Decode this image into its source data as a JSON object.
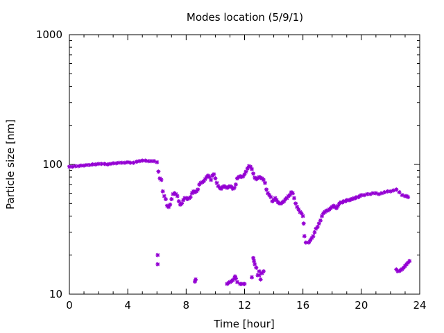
{
  "chart_data": {
    "type": "scatter",
    "title": "Modes location (5/9/1)",
    "xlabel": "Time [hour]",
    "ylabel": "Particle size [nm]",
    "xlim": [
      0,
      24
    ],
    "ylim": [
      10,
      1000
    ],
    "yscale": "log",
    "xticks": [
      0,
      4,
      8,
      12,
      16,
      20,
      24
    ],
    "xtick_labels": [
      "0",
      "4",
      "8",
      "12",
      "16",
      "20",
      "24"
    ],
    "yticks": [
      10,
      100,
      1000
    ],
    "ytick_labels": [
      "10",
      "100",
      "1000"
    ],
    "grid": false,
    "legend": "none",
    "marker_color": "#9400D3",
    "series": [
      {
        "points": [
          [
            0.0,
            96
          ],
          [
            0.2,
            96
          ],
          [
            0.4,
            97
          ],
          [
            0.6,
            97
          ],
          [
            0.8,
            98
          ],
          [
            1.0,
            98
          ],
          [
            1.2,
            99
          ],
          [
            1.4,
            99
          ],
          [
            1.6,
            100
          ],
          [
            1.8,
            100
          ],
          [
            2.0,
            101
          ],
          [
            2.2,
            101
          ],
          [
            2.4,
            101
          ],
          [
            2.6,
            100
          ],
          [
            2.8,
            101
          ],
          [
            3.0,
            102
          ],
          [
            3.2,
            102
          ],
          [
            3.4,
            103
          ],
          [
            3.6,
            103
          ],
          [
            3.8,
            103
          ],
          [
            4.0,
            104
          ],
          [
            4.2,
            103
          ],
          [
            4.4,
            103
          ],
          [
            4.6,
            105
          ],
          [
            4.8,
            106
          ],
          [
            5.0,
            107
          ],
          [
            5.2,
            107
          ],
          [
            5.4,
            106
          ],
          [
            5.6,
            106
          ],
          [
            5.8,
            106
          ],
          [
            6.0,
            104
          ],
          [
            6.1,
            88
          ],
          [
            6.2,
            78
          ],
          [
            6.3,
            76
          ],
          [
            6.4,
            62
          ],
          [
            6.5,
            57
          ],
          [
            6.6,
            54
          ],
          [
            6.7,
            48
          ],
          [
            6.8,
            47
          ],
          [
            6.9,
            49
          ],
          [
            7.0,
            54
          ],
          [
            7.1,
            59
          ],
          [
            7.2,
            60
          ],
          [
            7.3,
            59
          ],
          [
            7.4,
            57
          ],
          [
            7.5,
            52
          ],
          [
            7.6,
            49
          ],
          [
            7.7,
            50
          ],
          [
            7.8,
            53
          ],
          [
            7.9,
            55
          ],
          [
            8.0,
            55
          ],
          [
            8.1,
            54
          ],
          [
            8.2,
            55
          ],
          [
            8.3,
            56
          ],
          [
            8.4,
            60
          ],
          [
            8.5,
            62
          ],
          [
            8.6,
            61
          ],
          [
            8.7,
            62
          ],
          [
            8.8,
            64
          ],
          [
            8.9,
            70
          ],
          [
            9.0,
            72
          ],
          [
            9.1,
            73
          ],
          [
            9.2,
            74
          ],
          [
            9.3,
            77
          ],
          [
            9.4,
            80
          ],
          [
            9.5,
            82
          ],
          [
            9.6,
            80
          ],
          [
            9.7,
            76
          ],
          [
            9.8,
            82
          ],
          [
            9.9,
            84
          ],
          [
            10.0,
            78
          ],
          [
            10.1,
            72
          ],
          [
            10.2,
            68
          ],
          [
            10.3,
            66
          ],
          [
            10.4,
            65
          ],
          [
            10.5,
            67
          ],
          [
            10.6,
            68
          ],
          [
            10.7,
            67
          ],
          [
            10.8,
            66
          ],
          [
            10.9,
            67
          ],
          [
            11.0,
            68
          ],
          [
            11.1,
            67
          ],
          [
            11.2,
            65
          ],
          [
            11.3,
            66
          ],
          [
            11.4,
            70
          ],
          [
            11.5,
            78
          ],
          [
            11.6,
            80
          ],
          [
            11.7,
            81
          ],
          [
            11.8,
            80
          ],
          [
            11.9,
            81
          ],
          [
            12.0,
            84
          ],
          [
            12.1,
            88
          ],
          [
            12.2,
            93
          ],
          [
            12.3,
            97
          ],
          [
            12.4,
            96
          ],
          [
            12.5,
            92
          ],
          [
            12.6,
            85
          ],
          [
            12.7,
            79
          ],
          [
            12.8,
            77
          ],
          [
            12.9,
            78
          ],
          [
            13.0,
            80
          ],
          [
            13.1,
            79
          ],
          [
            13.2,
            78
          ],
          [
            13.3,
            76
          ],
          [
            13.4,
            72
          ],
          [
            13.5,
            64
          ],
          [
            13.6,
            60
          ],
          [
            13.7,
            58
          ],
          [
            13.8,
            56
          ],
          [
            13.9,
            52
          ],
          [
            14.0,
            53
          ],
          [
            14.1,
            55
          ],
          [
            14.2,
            53
          ],
          [
            14.3,
            51
          ],
          [
            14.4,
            50
          ],
          [
            14.5,
            50
          ],
          [
            14.6,
            51
          ],
          [
            14.7,
            52
          ],
          [
            14.8,
            54
          ],
          [
            14.9,
            55
          ],
          [
            15.0,
            57
          ],
          [
            15.1,
            58
          ],
          [
            15.2,
            61
          ],
          [
            15.3,
            60
          ],
          [
            15.4,
            55
          ],
          [
            15.5,
            50
          ],
          [
            15.6,
            47
          ],
          [
            15.7,
            45
          ],
          [
            15.8,
            43
          ],
          [
            15.9,
            42
          ],
          [
            16.0,
            40
          ],
          [
            16.05,
            35
          ],
          [
            16.1,
            28
          ],
          [
            16.2,
            25
          ],
          [
            16.4,
            25
          ],
          [
            16.5,
            26
          ],
          [
            16.6,
            27
          ],
          [
            16.7,
            28
          ],
          [
            16.8,
            30
          ],
          [
            16.9,
            32
          ],
          [
            17.0,
            33
          ],
          [
            17.1,
            35
          ],
          [
            17.2,
            37
          ],
          [
            17.3,
            40
          ],
          [
            17.4,
            42
          ],
          [
            17.5,
            43
          ],
          [
            17.6,
            44
          ],
          [
            17.7,
            44
          ],
          [
            17.8,
            45
          ],
          [
            17.9,
            46
          ],
          [
            18.0,
            47
          ],
          [
            18.1,
            48
          ],
          [
            18.2,
            47
          ],
          [
            18.3,
            46
          ],
          [
            18.4,
            48
          ],
          [
            18.5,
            50
          ],
          [
            18.6,
            51
          ],
          [
            18.7,
            51
          ],
          [
            18.8,
            52
          ],
          [
            18.9,
            52
          ],
          [
            19.0,
            53
          ],
          [
            19.1,
            53
          ],
          [
            19.2,
            53
          ],
          [
            19.3,
            54
          ],
          [
            19.4,
            54
          ],
          [
            19.5,
            55
          ],
          [
            19.6,
            55
          ],
          [
            19.7,
            56
          ],
          [
            19.8,
            56
          ],
          [
            19.9,
            57
          ],
          [
            20.0,
            58
          ],
          [
            20.2,
            58
          ],
          [
            20.4,
            59
          ],
          [
            20.6,
            59
          ],
          [
            20.8,
            60
          ],
          [
            21.0,
            60
          ],
          [
            21.2,
            59
          ],
          [
            21.4,
            60
          ],
          [
            21.6,
            61
          ],
          [
            21.8,
            62
          ],
          [
            22.0,
            62
          ],
          [
            22.2,
            63
          ],
          [
            22.4,
            64
          ],
          [
            22.6,
            61
          ],
          [
            22.8,
            58
          ],
          [
            23.0,
            57
          ],
          [
            23.1,
            57
          ],
          [
            23.2,
            56
          ],
          [
            6.05,
            20
          ],
          [
            6.05,
            17
          ],
          [
            8.6,
            12.5
          ],
          [
            8.65,
            13
          ],
          [
            10.8,
            12
          ],
          [
            10.9,
            12.2
          ],
          [
            11.0,
            12.4
          ],
          [
            11.1,
            12.6
          ],
          [
            11.2,
            12.8
          ],
          [
            11.3,
            13.2
          ],
          [
            11.35,
            13.7
          ],
          [
            11.4,
            13.2
          ],
          [
            11.5,
            12.4
          ],
          [
            11.7,
            12
          ],
          [
            11.8,
            12
          ],
          [
            11.9,
            12
          ],
          [
            12.0,
            12
          ],
          [
            12.5,
            13.5
          ],
          [
            12.6,
            19
          ],
          [
            12.65,
            18
          ],
          [
            12.7,
            17
          ],
          [
            12.8,
            16
          ],
          [
            12.9,
            14
          ],
          [
            13.0,
            14
          ],
          [
            13.1,
            13
          ],
          [
            13.2,
            14.5
          ],
          [
            13.3,
            15
          ],
          [
            13.0,
            15
          ],
          [
            22.4,
            15.5
          ],
          [
            22.5,
            15
          ],
          [
            22.6,
            15.1
          ],
          [
            22.7,
            15.3
          ],
          [
            22.8,
            15.6
          ],
          [
            22.9,
            16
          ],
          [
            23.0,
            16.5
          ],
          [
            23.1,
            17
          ],
          [
            23.2,
            17.5
          ],
          [
            23.3,
            18
          ]
        ]
      }
    ]
  }
}
